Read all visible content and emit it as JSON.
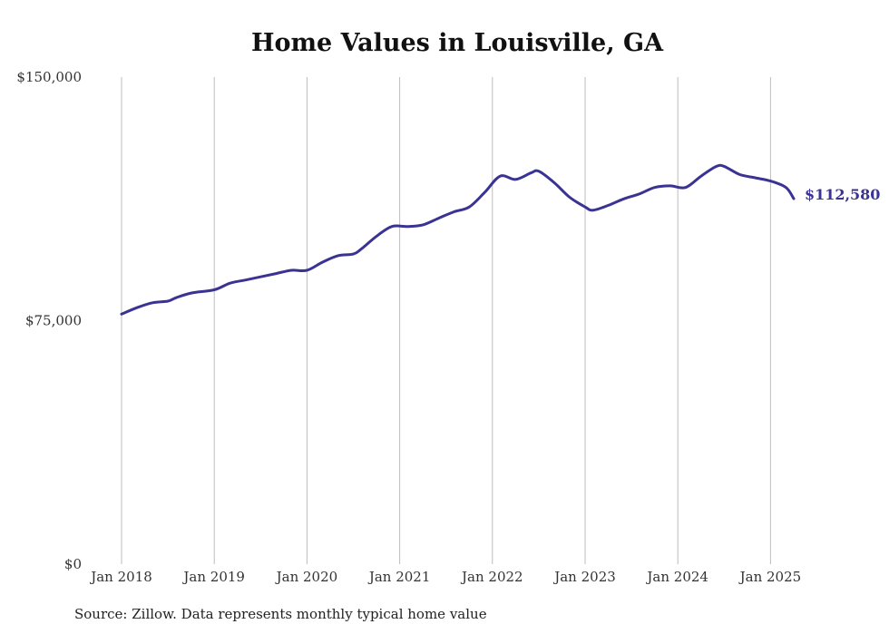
{
  "colors": {
    "line": "#3b3393",
    "grid": "#bdbdbd",
    "text": "#333333",
    "title": "#111111"
  },
  "chart_data": {
    "type": "line",
    "title": "Home Values in Louisville, GA",
    "xlabel": "",
    "ylabel": "",
    "ylim": [
      0,
      150000
    ],
    "y_ticks": [
      {
        "value": 0,
        "label": "$0"
      },
      {
        "value": 75000,
        "label": "$75,000"
      },
      {
        "value": 150000,
        "label": "$150,000"
      }
    ],
    "x_ticks": [
      {
        "value": 2018,
        "label": "Jan 2018"
      },
      {
        "value": 2019,
        "label": "Jan 2019"
      },
      {
        "value": 2020,
        "label": "Jan 2020"
      },
      {
        "value": 2021,
        "label": "Jan 2021"
      },
      {
        "value": 2022,
        "label": "Jan 2022"
      },
      {
        "value": 2023,
        "label": "Jan 2023"
      },
      {
        "value": 2024,
        "label": "Jan 2024"
      },
      {
        "value": 2025,
        "label": "Jan 2025"
      }
    ],
    "grid": "vertical",
    "series": [
      {
        "x": [
          "2018-01",
          "2018-03",
          "2018-05",
          "2018-07",
          "2018-08",
          "2018-10",
          "2019-01",
          "2019-03",
          "2019-05",
          "2019-07",
          "2019-09",
          "2019-11",
          "2020-01",
          "2020-03",
          "2020-05",
          "2020-07",
          "2020-08",
          "2020-10",
          "2020-12",
          "2021-02",
          "2021-04",
          "2021-06",
          "2021-08",
          "2021-10",
          "2021-12",
          "2022-02",
          "2022-04",
          "2022-06",
          "2022-07",
          "2022-09",
          "2022-11",
          "2023-01",
          "2023-02",
          "2023-04",
          "2023-06",
          "2023-08",
          "2023-10",
          "2023-12",
          "2024-02",
          "2024-04",
          "2024-06",
          "2024-07",
          "2024-09",
          "2024-11",
          "2025-01",
          "2025-03",
          "2025-04"
        ],
        "values": [
          77000,
          79000,
          80500,
          81000,
          82000,
          83500,
          84500,
          86500,
          87500,
          88500,
          89500,
          90500,
          90500,
          93000,
          95000,
          95500,
          97000,
          101000,
          104000,
          104000,
          104500,
          106500,
          108500,
          110000,
          114500,
          119500,
          118500,
          120500,
          121000,
          117500,
          113000,
          110000,
          109000,
          110500,
          112500,
          114000,
          116000,
          116500,
          116000,
          119500,
          122500,
          122500,
          120000,
          119000,
          118000,
          116000,
          112580
        ]
      }
    ],
    "annotations": [
      {
        "label": "$112,580"
      }
    ]
  },
  "source_note": "Source: Zillow. Data represents monthly typical home value"
}
